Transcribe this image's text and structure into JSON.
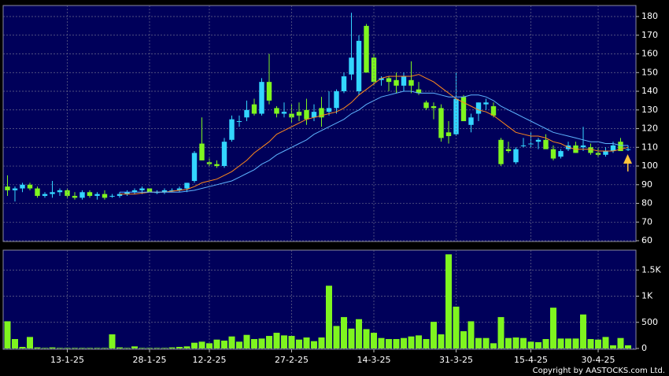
{
  "chart_data": [
    {
      "type": "candlestick",
      "up_color": "#33d6ff",
      "down_color": "#7ff51f",
      "ylim": [
        59.6,
        185.9
      ],
      "yticks": [
        60,
        70,
        80,
        90,
        100,
        110,
        120,
        130,
        140,
        150,
        160,
        170,
        180
      ],
      "grid": true,
      "open": [
        89,
        87,
        88,
        90,
        88,
        84,
        85,
        86,
        87,
        84,
        83,
        86,
        84,
        85,
        84,
        84,
        85,
        86,
        87,
        88,
        86,
        86,
        87,
        87,
        88,
        92,
        112,
        102,
        101,
        100,
        114,
        124,
        126,
        133,
        128,
        145,
        131,
        128,
        128,
        129,
        130,
        126,
        131,
        129,
        131,
        140,
        149,
        140,
        175,
        158,
        146,
        147,
        146,
        143,
        146,
        141,
        134,
        132,
        131,
        118,
        117,
        137,
        122,
        128,
        133,
        132,
        114,
        109,
        102,
        111,
        112,
        113,
        114,
        109,
        105,
        109,
        111,
        110,
        110,
        107,
        106,
        108,
        113,
        109
      ],
      "high": [
        95,
        89,
        91,
        91,
        89,
        86,
        92,
        88,
        88,
        86,
        87,
        87,
        86,
        87,
        85,
        86,
        87,
        88,
        89,
        88,
        87,
        88,
        88,
        89,
        91,
        108,
        126,
        104,
        103,
        115,
        127,
        127,
        135,
        136,
        147,
        160,
        132,
        134,
        133,
        134,
        136,
        133,
        137,
        140,
        141,
        150,
        182,
        170,
        176,
        160,
        148,
        148,
        150,
        150,
        156,
        145,
        135,
        134,
        133,
        124,
        150,
        138,
        128,
        134,
        136,
        134,
        115,
        113,
        110,
        115,
        118,
        115,
        117,
        111,
        109,
        113,
        113,
        121,
        112,
        110,
        110,
        113,
        115,
        111
      ],
      "low": [
        84,
        81,
        86,
        87,
        83,
        83,
        83,
        84,
        83,
        82,
        82,
        83,
        82,
        82,
        83,
        83,
        84,
        85,
        85,
        86,
        85,
        85,
        86,
        86,
        86,
        91,
        103,
        100,
        99,
        99,
        113,
        121,
        124,
        127,
        127,
        133,
        126,
        126,
        123,
        124,
        122,
        124,
        121,
        127,
        128,
        139,
        146,
        138,
        150,
        143,
        143,
        140,
        139,
        140,
        139,
        138,
        130,
        125,
        113,
        112,
        116,
        124,
        118,
        124,
        130,
        126,
        100,
        107,
        101,
        110,
        110,
        109,
        110,
        103,
        104,
        108,
        107,
        108,
        106,
        105,
        105,
        107,
        108,
        108
      ],
      "close": [
        87,
        88,
        90,
        88,
        84,
        85,
        86,
        87,
        84,
        83,
        86,
        84,
        85,
        83,
        84,
        85,
        86,
        87,
        88,
        86,
        86,
        87,
        87,
        88,
        91,
        107,
        103,
        101,
        100,
        113,
        125,
        124,
        130,
        128,
        145,
        135,
        128,
        129,
        126,
        127,
        125,
        129,
        126,
        131,
        140,
        148,
        158,
        167,
        150,
        145,
        147,
        145,
        143,
        148,
        143,
        139,
        131,
        131,
        115,
        116,
        136,
        124,
        126,
        134,
        134,
        127,
        101,
        108,
        109,
        111,
        112,
        114,
        109,
        104,
        108,
        111,
        107,
        111,
        107,
        106,
        108,
        111,
        108,
        109
      ],
      "series": [
        {
          "name": "MA10",
          "color": "#ff8a1c",
          "values": [
            null,
            null,
            null,
            null,
            null,
            null,
            null,
            null,
            null,
            null,
            null,
            null,
            null,
            null,
            null,
            85,
            85,
            85,
            85.5,
            86,
            86,
            86,
            86.5,
            87,
            87.5,
            89,
            91,
            92,
            93,
            95,
            97,
            100,
            103,
            107,
            110,
            113,
            117,
            119,
            121,
            123,
            125,
            126,
            127,
            128,
            129,
            131,
            134,
            138,
            141,
            144,
            147,
            148,
            148,
            148,
            148,
            149,
            147,
            145,
            142,
            139,
            136,
            134,
            132,
            130,
            129,
            127,
            124,
            121,
            118,
            117,
            116,
            116,
            115,
            113,
            112,
            110,
            109,
            109,
            109,
            108,
            108,
            108,
            109,
            110
          ]
        },
        {
          "name": "MA20",
          "color": "#5eb4ff",
          "values": [
            null,
            null,
            null,
            null,
            null,
            null,
            null,
            null,
            null,
            null,
            null,
            null,
            null,
            null,
            null,
            86,
            86,
            86,
            86,
            86,
            86,
            86,
            86,
            86,
            86.5,
            87,
            88,
            89,
            90,
            91,
            92,
            94,
            96,
            98,
            101,
            103,
            106,
            108,
            110,
            112,
            114,
            117,
            119,
            121,
            123,
            125,
            128,
            130,
            133,
            135,
            137,
            138,
            139,
            140,
            140,
            139,
            139,
            139,
            138,
            137,
            137,
            137,
            138,
            138,
            137,
            135,
            132,
            130,
            128,
            126,
            124,
            122,
            120,
            118,
            117,
            116,
            115,
            114,
            113,
            113,
            112,
            112,
            111,
            111
          ]
        }
      ]
    },
    {
      "type": "bar",
      "color": "#7ff51f",
      "values": [
        520,
        180,
        30,
        220,
        20,
        10,
        20,
        10,
        10,
        10,
        10,
        10,
        10,
        10,
        270,
        20,
        10,
        40,
        10,
        10,
        10,
        10,
        20,
        30,
        40,
        110,
        130,
        100,
        170,
        150,
        230,
        130,
        260,
        180,
        190,
        240,
        300,
        250,
        240,
        170,
        210,
        140,
        210,
        1200,
        430,
        600,
        380,
        560,
        370,
        300,
        200,
        180,
        180,
        200,
        230,
        250,
        180,
        510,
        270,
        1800,
        800,
        330,
        520,
        200,
        200,
        100,
        600,
        200,
        210,
        200,
        130,
        120,
        180,
        780,
        190,
        190,
        190,
        650,
        180,
        170,
        220,
        60,
        200,
        60
      ],
      "ylim": [
        0,
        1880
      ],
      "yticks": [
        0,
        500,
        {
          "value": 1000,
          "label": "1K"
        },
        {
          "value": 1500,
          "label": "1.5K"
        }
      ],
      "xticks": [
        {
          "value": 8,
          "label": "13-1-25"
        },
        {
          "value": 19,
          "label": "28-1-25"
        },
        {
          "value": 27,
          "label": "12-2-25"
        },
        {
          "value": 38,
          "label": "27-2-25"
        },
        {
          "value": 49,
          "label": "14-3-25"
        },
        {
          "value": 60,
          "label": "31-3-25"
        },
        {
          "value": 70,
          "label": "15-4-25"
        },
        {
          "value": 79,
          "label": "30-4-25"
        }
      ]
    }
  ],
  "copyright": "Copyright by AASTOCKS.com Ltd."
}
